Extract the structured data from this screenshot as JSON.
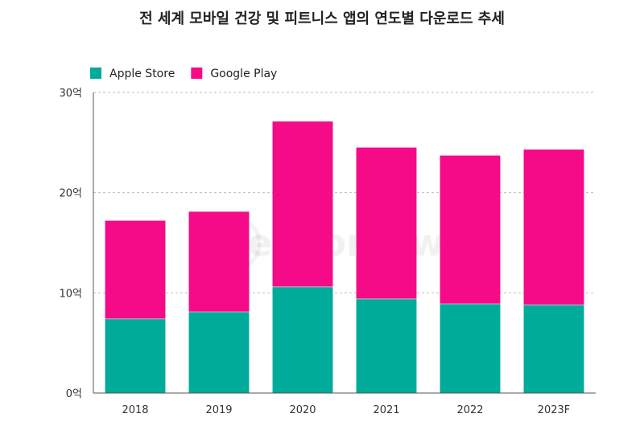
{
  "chart_data": {
    "type": "bar",
    "stacked": true,
    "title": "전 세계 모바일 건강 및 피트니스 앱의 연도별 다운로드 추세",
    "categories": [
      "2018",
      "2019",
      "2020",
      "2021",
      "2022",
      "2023F"
    ],
    "series": [
      {
        "name": "Apple Store",
        "color": "#00ab9a",
        "values": [
          7.4,
          8.1,
          10.6,
          9.4,
          8.9,
          8.8
        ]
      },
      {
        "name": "Google Play",
        "color": "#f50a87",
        "values": [
          9.8,
          10.0,
          16.5,
          15.1,
          14.8,
          15.5
        ]
      }
    ],
    "ylim": [
      0,
      30
    ],
    "yticks": [
      0,
      10,
      20,
      30
    ],
    "ytick_labels": [
      "0억",
      "10억",
      "20억",
      "30억"
    ],
    "grid": true,
    "legend_position": "top-left",
    "watermark": "SensorTower"
  }
}
